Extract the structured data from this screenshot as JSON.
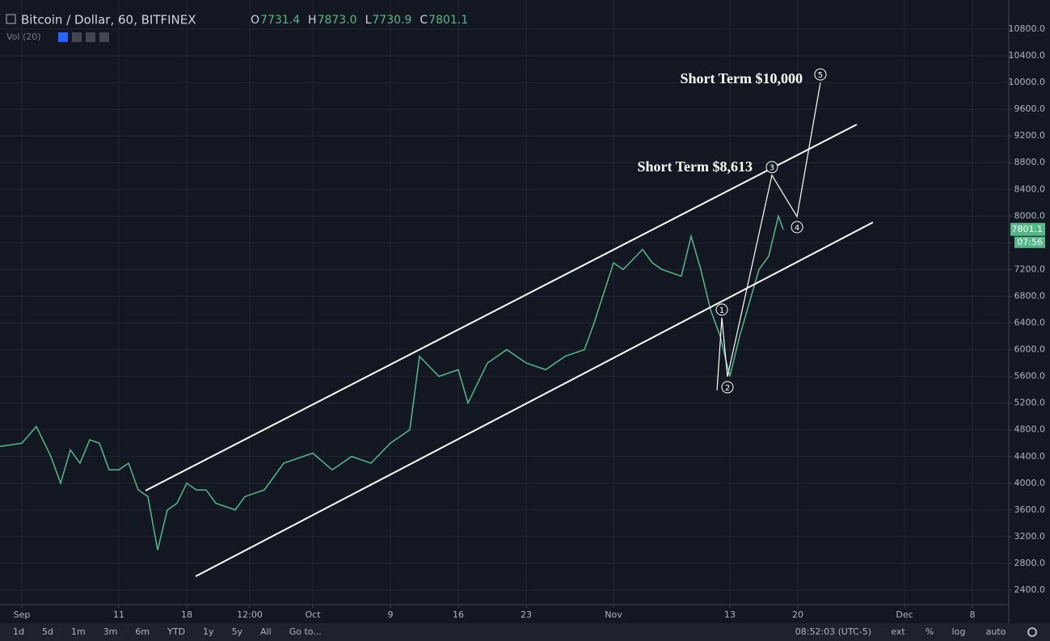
{
  "header": {
    "symbol": "Bitcoin / Dollar, 60, BITFINEX",
    "ohlc": [
      {
        "key": "O",
        "value": 7731.4
      },
      {
        "key": "H",
        "value": 7873,
        "label": "7873.0"
      },
      {
        "key": "L",
        "value": 7730.9
      },
      {
        "key": "C",
        "value": 7801.1
      }
    ],
    "volume": "Vol (20)"
  },
  "chart_data": {
    "type": "line",
    "series": [
      {
        "color": "#53b987",
        "x": [
          -2.25,
          0,
          1.5,
          3,
          4,
          5,
          6,
          7,
          8,
          9,
          10,
          11,
          12,
          13,
          14,
          15,
          16,
          17,
          18,
          19,
          20,
          22,
          23,
          25,
          27,
          29,
          30,
          32,
          34,
          36,
          38,
          40,
          41,
          43,
          45,
          46,
          48,
          50,
          52,
          54,
          56,
          58,
          59,
          61,
          62,
          64,
          65,
          66,
          68,
          69,
          70,
          71,
          72,
          73,
          74,
          75,
          76,
          77,
          78,
          78.5
        ],
        "values": [
          4550,
          4600,
          4850,
          4400,
          4000,
          4500,
          4300,
          4650,
          4600,
          4200,
          4200,
          4300,
          3900,
          3800,
          3000,
          3600,
          3700,
          4000,
          3900,
          3900,
          3700,
          3600,
          3800,
          3900,
          4300,
          4400,
          4450,
          4200,
          4400,
          4300,
          4600,
          4800,
          5900,
          5600,
          5700,
          5200,
          5800,
          6000,
          5800,
          5700,
          5900,
          6000,
          6400,
          7300,
          7200,
          7500,
          7300,
          7200,
          7100,
          7700,
          7200,
          6600,
          6200,
          5600,
          6200,
          6700,
          7200,
          7400,
          8000,
          7800
        ]
      }
    ],
    "channel": [
      {
        "x": [
          12.75,
          86.08
        ],
        "values": [
          3889,
          9372
        ]
      },
      {
        "x": [
          17.92,
          87.75
        ],
        "values": [
          2606,
          7907
        ]
      }
    ],
    "wave": {
      "x": [
        71.67,
        72.17,
        72.75,
        77.33,
        79.92,
        82.33
      ],
      "values": [
        5390,
        6479,
        5595,
        8613,
        7992,
        10000
      ],
      "labels": [
        null,
        "1",
        "2",
        "3",
        "4",
        "5"
      ]
    },
    "annotations": [
      "Short Term $10,000",
      "Short Term $8,613"
    ],
    "last_price": 7801.1,
    "countdown": "07:56",
    "xlim": [
      -2.25,
      101.75
    ],
    "xticks": [
      {
        "value": 0,
        "label": "Sep"
      },
      {
        "value": 10,
        "label": "11"
      },
      {
        "value": 17,
        "label": "18"
      },
      {
        "value": 23.5,
        "label": "12:00"
      },
      {
        "value": 30,
        "label": "Oct"
      },
      {
        "value": 38,
        "label": "9"
      },
      {
        "value": 45,
        "label": "16"
      },
      {
        "value": 52,
        "label": "23"
      },
      {
        "value": 61,
        "label": "Nov"
      },
      {
        "value": 73,
        "label": "13"
      },
      {
        "value": 80,
        "label": "20"
      },
      {
        "value": 91,
        "label": "Dec"
      },
      {
        "value": 98,
        "label": "8"
      }
    ],
    "ylim": [
      2400,
      10800
    ],
    "yticks": [
      {
        "value": 2400,
        "label": "2400.0"
      },
      {
        "value": 2800,
        "label": "2800.0"
      },
      {
        "value": 3200,
        "label": "3200.0"
      },
      {
        "value": 3600,
        "label": "3600.0"
      },
      {
        "value": 4000,
        "label": "4000.0"
      },
      {
        "value": 4400,
        "label": "4400.0"
      },
      {
        "value": 4800,
        "label": "4800.0"
      },
      {
        "value": 5200,
        "label": "5200.0"
      },
      {
        "value": 5600,
        "label": "5600.0"
      },
      {
        "value": 6000,
        "label": "6000.0"
      },
      {
        "value": 6400,
        "label": "6400.0"
      },
      {
        "value": 6800,
        "label": "6800.0"
      },
      {
        "value": 7200,
        "label": "7200.0"
      },
      {
        "value": 7600,
        "label": "7600.0"
      },
      {
        "value": 8000,
        "label": "8000.0"
      },
      {
        "value": 8400,
        "label": "8400.0"
      },
      {
        "value": 8800,
        "label": "8800.0"
      },
      {
        "value": 9200,
        "label": "9200.0"
      },
      {
        "value": 9600,
        "label": "9600.0"
      },
      {
        "value": 10000,
        "label": "10000.0"
      },
      {
        "value": 10400,
        "label": "10400.0"
      },
      {
        "value": 10800,
        "label": "10800.0"
      }
    ],
    "grid": true
  },
  "toolbar": {
    "ranges": [
      "1d",
      "5d",
      "1m",
      "3m",
      "6m",
      "YTD",
      "1y",
      "5y",
      "All",
      "Go to..."
    ],
    "clock": "08:52:03 (UTC-5)",
    "options": [
      "ext",
      "%",
      "log",
      "auto"
    ]
  }
}
